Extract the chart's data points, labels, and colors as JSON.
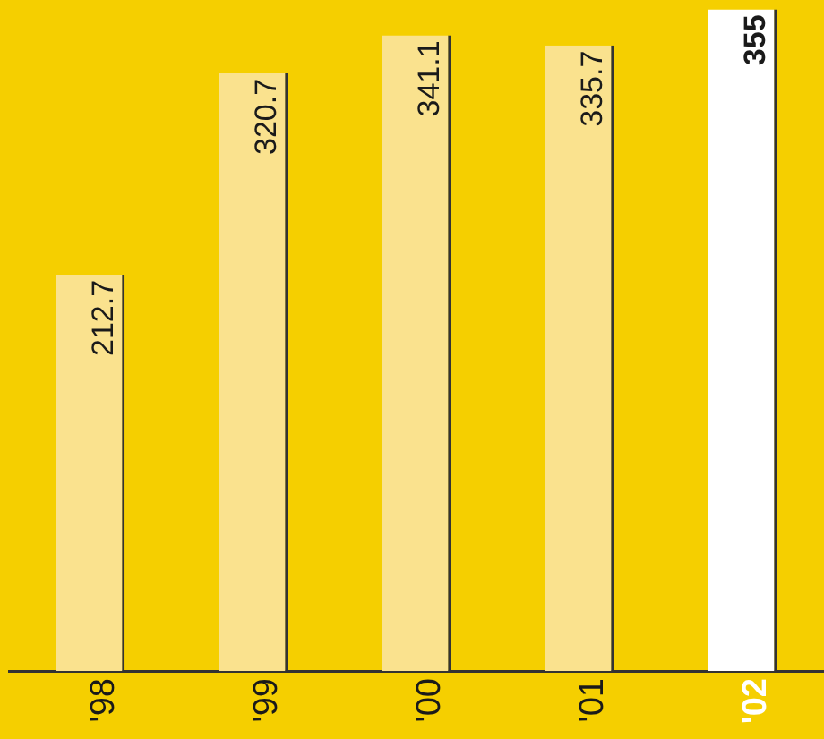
{
  "chart_data": {
    "type": "bar",
    "categories": [
      "'98",
      "'99",
      "'00",
      "'01",
      "'02"
    ],
    "values": [
      212.7,
      320.7,
      341.1,
      335.7,
      355
    ],
    "value_labels": [
      "212.7",
      "320.7",
      "341.1",
      "335.7",
      "355"
    ],
    "colors": [
      "#fae28e",
      "#fae28e",
      "#fae28e",
      "#fae28e",
      "#ffffff"
    ],
    "ylim": [
      0,
      360
    ],
    "grid": false,
    "legend": false
  }
}
